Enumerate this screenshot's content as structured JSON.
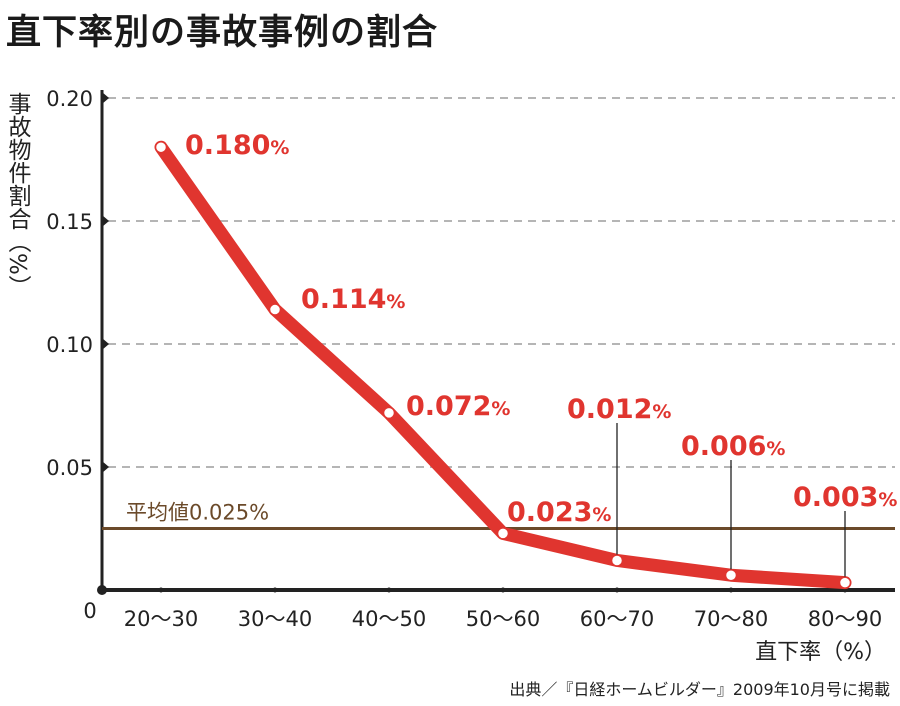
{
  "chart_data": {
    "type": "line",
    "title": "直下率別の事故事例の割合",
    "ylabel": "事故物件割合（%）",
    "xlabel": "直下率（%）",
    "ylim": [
      0,
      0.2
    ],
    "yticks": [
      "0.20",
      "0.15",
      "0.10",
      "0.05"
    ],
    "yticks_values": [
      0.2,
      0.15,
      0.1,
      0.05
    ],
    "origin_label": "0",
    "categories": [
      "20〜30",
      "30〜40",
      "40〜50",
      "50〜60",
      "60〜70",
      "70〜80",
      "80〜90"
    ],
    "series": [
      {
        "values": [
          0.18,
          0.114,
          0.072,
          0.023,
          0.012,
          0.006,
          0.003
        ],
        "labels": [
          "0.180",
          "0.114",
          "0.072",
          "0.023",
          "0.012",
          "0.006",
          "0.003"
        ],
        "color": "#e0352f"
      }
    ],
    "average": {
      "label": "平均値0.025%",
      "value": 0.025,
      "color": "#6b4a2a"
    },
    "unit_suffix": "%",
    "grid": "horizontal-dashed",
    "source": "出典／『日経ホームビルダー』2009年10月号に掲載"
  }
}
